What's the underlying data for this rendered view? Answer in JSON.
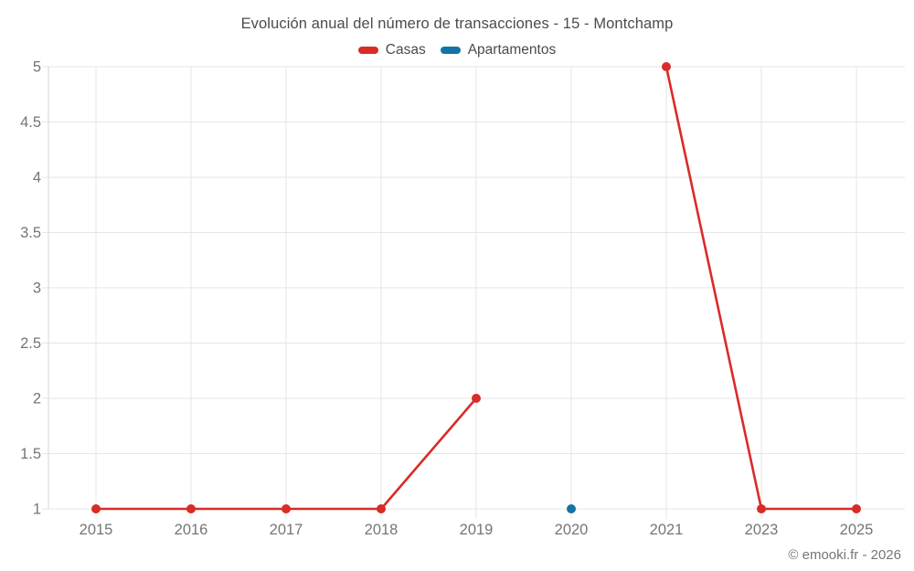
{
  "chart_data": {
    "type": "line",
    "title": "Evolución anual del número de transacciones - 15 - Montchamp",
    "categories": [
      "2015",
      "2016",
      "2017",
      "2018",
      "2019",
      "2020",
      "2021",
      "2023",
      "2025"
    ],
    "series": [
      {
        "name": "Casas",
        "color": "#d92b27",
        "values": [
          1,
          1,
          1,
          1,
          2,
          null,
          5,
          1,
          1
        ]
      },
      {
        "name": "Apartamentos",
        "color": "#1573a5",
        "values": [
          null,
          null,
          null,
          null,
          null,
          1,
          null,
          null,
          null
        ]
      }
    ],
    "ylim": [
      1,
      5
    ],
    "yticks": [
      1,
      1.5,
      2,
      2.5,
      3,
      3.5,
      4,
      4.5,
      5
    ],
    "grid": true,
    "legend_position": "top",
    "grid_color": "#e6e6e6",
    "axis_color": "#d6d6d6",
    "tick_color": "#757575",
    "title_color": "#4b4b4b"
  },
  "footer": {
    "copyright": "© emooki.fr - 2026"
  }
}
